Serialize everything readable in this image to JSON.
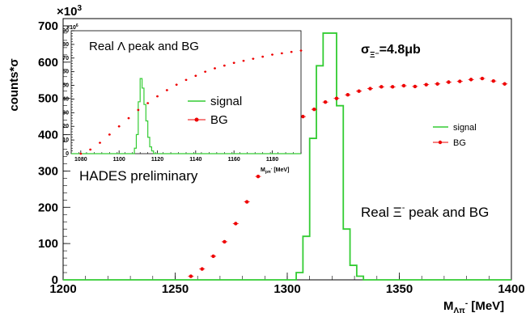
{
  "chart_data": [
    {
      "type": "line",
      "xlabel": "MΛπ⁻ [MeV]",
      "xlabel_main": "M",
      "xlabel_sub": "Λπ",
      "xlabel_sup": "-",
      "xlabel_unit": " [MeV]",
      "ylabel": "counts*σ",
      "y_multiplier": "×10³",
      "y_multiplier_base": "×10",
      "y_multiplier_exp": "3",
      "xlim": [
        1200,
        1400
      ],
      "ylim": [
        0,
        720
      ],
      "x_ticks": [
        "1200",
        "1250",
        "1300",
        "1350",
        "1400"
      ],
      "y_ticks": [
        "0",
        "100",
        "200",
        "300",
        "400",
        "500",
        "600",
        "700"
      ],
      "series": [
        {
          "name": "signal",
          "kind": "histogram",
          "color": "#33cc33",
          "bin_width": 3,
          "bins_x": [
            1304,
            1307,
            1310,
            1313,
            1316,
            1319,
            1322,
            1325,
            1328,
            1331
          ],
          "values": [
            20,
            120,
            390,
            590,
            680,
            680,
            480,
            140,
            40,
            10
          ]
        },
        {
          "name": "BG",
          "kind": "points",
          "color": "#ee0000",
          "x": [
            1257,
            1262,
            1267,
            1272,
            1277,
            1282,
            1287,
            1292,
            1297,
            1302,
            1307,
            1312,
            1317,
            1322,
            1327,
            1332,
            1337,
            1342,
            1347,
            1352,
            1357,
            1362,
            1367,
            1372,
            1377,
            1382,
            1387,
            1392,
            1397
          ],
          "y": [
            10,
            30,
            65,
            105,
            155,
            215,
            285,
            355,
            400,
            430,
            450,
            470,
            490,
            500,
            510,
            520,
            527,
            532,
            532,
            535,
            533,
            538,
            540,
            545,
            547,
            552,
            555,
            548,
            540
          ]
        }
      ],
      "annotations": {
        "cross_section_prefix": "σ",
        "cross_section_sub": "Ξ⁻",
        "cross_section_value": "=4.8μb",
        "peak_label_prefix": "Real Ξ",
        "peak_label_sup": "-",
        "peak_label_suffix": " peak and BG",
        "preliminary": "HADES preliminary"
      },
      "legend": [
        {
          "label": "signal",
          "color": "#33cc33",
          "style": "line"
        },
        {
          "label": "BG",
          "color": "#ee0000",
          "style": "marker"
        }
      ],
      "legend_placement": "right-center"
    },
    {
      "type": "line",
      "title": "Real Λ peak and BG",
      "xlabel": "M_pπ⁻ [MeV]",
      "xlabel_main": "M",
      "xlabel_sub": "pπ",
      "xlabel_sup": "-",
      "xlabel_unit": " [MeV]",
      "y_multiplier": "×10⁶",
      "y_multiplier_base": "×10",
      "y_multiplier_exp": "6",
      "xlim": [
        1075,
        1195
      ],
      "ylim": [
        0,
        90
      ],
      "x_ticks": [
        "1080",
        "1100",
        "1120",
        "1140",
        "1160",
        "1180"
      ],
      "y_ticks": [
        "0",
        "10",
        "20",
        "30",
        "40",
        "50",
        "60",
        "70",
        "80",
        "90"
      ],
      "series": [
        {
          "name": "signal",
          "kind": "histogram",
          "color": "#33cc33",
          "bin_width": 1,
          "bins_x": [
            1108,
            1109,
            1110,
            1111,
            1112,
            1113,
            1114,
            1115,
            1116,
            1117
          ],
          "values": [
            4,
            14,
            38,
            55,
            48,
            36,
            24,
            12,
            5,
            2
          ]
        },
        {
          "name": "BG",
          "kind": "points",
          "color": "#ee0000",
          "x": [
            1080,
            1085,
            1090,
            1095,
            1100,
            1105,
            1110,
            1115,
            1120,
            1125,
            1130,
            1135,
            1140,
            1145,
            1150,
            1155,
            1160,
            1165,
            1170,
            1175,
            1180,
            1185,
            1190,
            1195
          ],
          "y": [
            0,
            3,
            8,
            14,
            20,
            26,
            32,
            37,
            42,
            46.5,
            50.5,
            54,
            57,
            60,
            62.5,
            64.5,
            66.5,
            68,
            69.5,
            71,
            72.5,
            73.5,
            74.5,
            75.5
          ]
        }
      ],
      "legend": [
        {
          "label": "signal",
          "color": "#33cc33",
          "style": "line"
        },
        {
          "label": "BG",
          "color": "#ee0000",
          "style": "marker"
        }
      ]
    }
  ]
}
